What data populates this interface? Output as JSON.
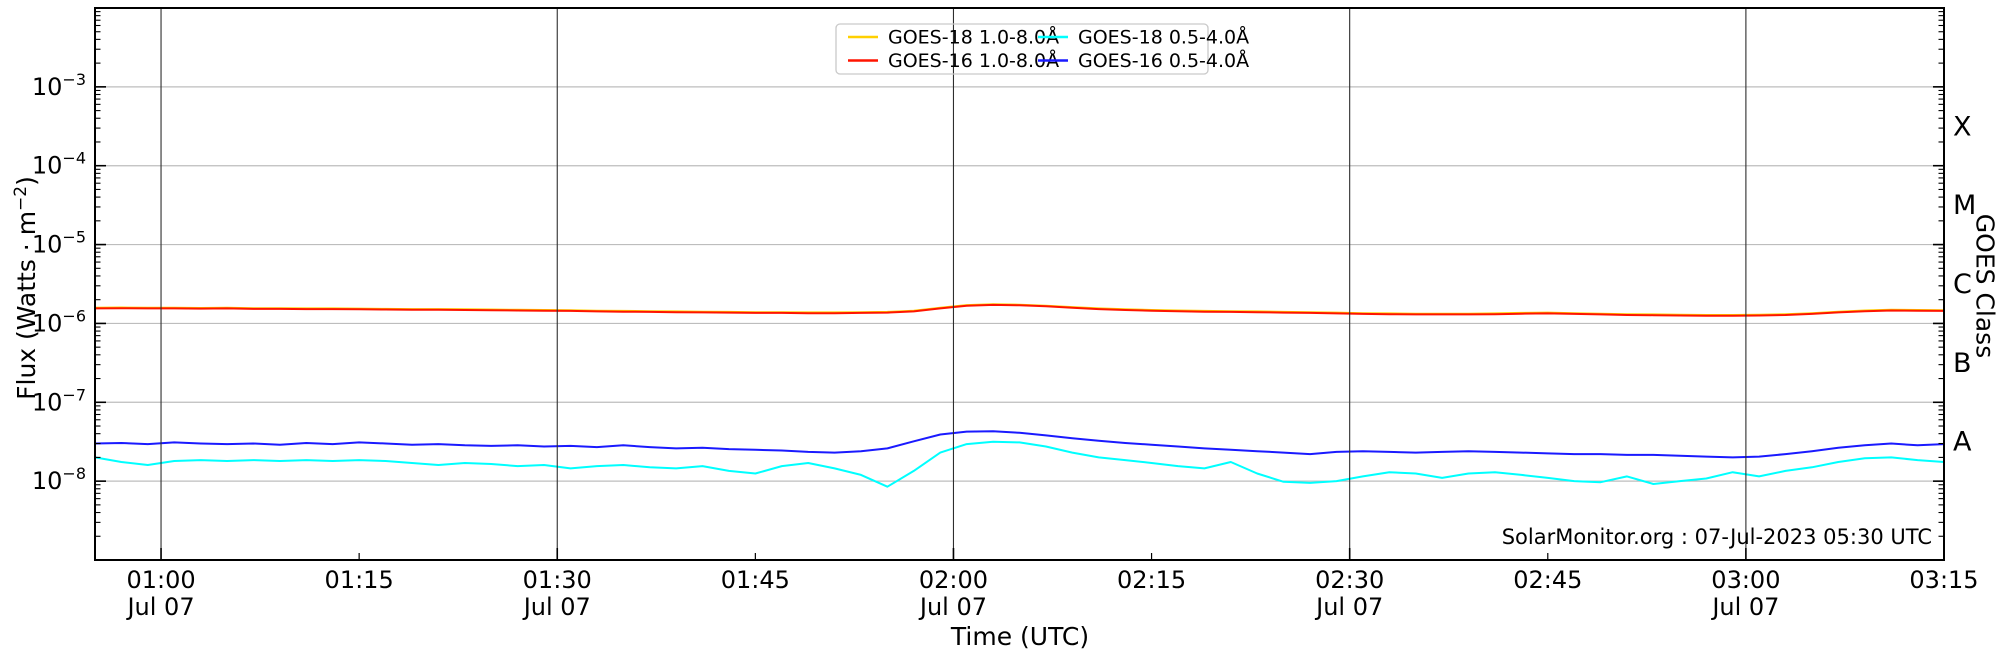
{
  "watermark": "SolarMonitor.org : 07-Jul-2023 05:30 UTC",
  "chart_data": {
    "type": "line",
    "title": "",
    "xlabel": "Time (UTC)",
    "ylabel": {
      "prefix": "Flux (Watts · m",
      "sup": "−2",
      "suffix": ")"
    },
    "ylabel_right": "GOES Class",
    "ylim": [
      1e-09,
      0.01
    ],
    "x_range_utc": [
      "00:55",
      "03:15"
    ],
    "x_date_label": "Jul 07",
    "grid": {
      "h_color": "#bdbdbd",
      "v_color": "#2e2e2e"
    },
    "axis_color": "#000000",
    "legend_border_color": "#c9c9c9",
    "y_tick_exponents": [
      -3,
      -4,
      -5,
      -6,
      -7,
      -8
    ],
    "x_ticks": [
      {
        "min": 60,
        "label": "01:00",
        "sub": "Jul 07"
      },
      {
        "min": 75,
        "label": "01:15",
        "sub": ""
      },
      {
        "min": 90,
        "label": "01:30",
        "sub": "Jul 07"
      },
      {
        "min": 105,
        "label": "01:45",
        "sub": ""
      },
      {
        "min": 120,
        "label": "02:00",
        "sub": "Jul 07"
      },
      {
        "min": 135,
        "label": "02:15",
        "sub": ""
      },
      {
        "min": 150,
        "label": "02:30",
        "sub": "Jul 07"
      },
      {
        "min": 165,
        "label": "02:45",
        "sub": ""
      },
      {
        "min": 180,
        "label": "03:00",
        "sub": "Jul 07"
      },
      {
        "min": 195,
        "label": "03:15",
        "sub": ""
      }
    ],
    "x_gridlines_min": [
      60,
      90,
      120,
      150,
      180
    ],
    "goes_classes": [
      {
        "label": "X",
        "center_exp": -3.5
      },
      {
        "label": "M",
        "center_exp": -4.5
      },
      {
        "label": "C",
        "center_exp": -5.5
      },
      {
        "label": "B",
        "center_exp": -6.5
      },
      {
        "label": "A",
        "center_exp": -7.5
      }
    ],
    "legend": {
      "entries": [
        {
          "label": "GOES-18 1.0-8.0Å",
          "color": "#ffd000"
        },
        {
          "label": "GOES-16 1.0-8.0Å",
          "color": "#ff1400"
        },
        {
          "label": "GOES-18 0.5-4.0Å",
          "color": "#00ffff"
        },
        {
          "label": "GOES-16 0.5-4.0Å",
          "color": "#1a1aff"
        }
      ]
    },
    "x_minutes": [
      55,
      57,
      59,
      61,
      63,
      65,
      67,
      69,
      71,
      73,
      75,
      77,
      79,
      81,
      83,
      85,
      87,
      89,
      91,
      93,
      95,
      97,
      99,
      101,
      103,
      105,
      107,
      109,
      111,
      113,
      115,
      117,
      119,
      121,
      123,
      125,
      127,
      129,
      131,
      133,
      135,
      137,
      139,
      141,
      143,
      145,
      147,
      149,
      151,
      153,
      155,
      157,
      159,
      161,
      163,
      165,
      167,
      169,
      171,
      173,
      175,
      177,
      179,
      181,
      183,
      185,
      187,
      189,
      191,
      193,
      195
    ],
    "series": [
      {
        "name": "GOES-18 1.0-8.0Å",
        "color": "#ffd000",
        "flux": [
          1.58e-06,
          1.59e-06,
          1.58e-06,
          1.58e-06,
          1.57e-06,
          1.58e-06,
          1.56e-06,
          1.56e-06,
          1.55e-06,
          1.55e-06,
          1.54e-06,
          1.53e-06,
          1.52e-06,
          1.52e-06,
          1.51e-06,
          1.5e-06,
          1.49e-06,
          1.48e-06,
          1.47e-06,
          1.45e-06,
          1.44e-06,
          1.43e-06,
          1.42e-06,
          1.41e-06,
          1.4e-06,
          1.39e-06,
          1.39e-06,
          1.38e-06,
          1.38e-06,
          1.39e-06,
          1.4e-06,
          1.45e-06,
          1.58e-06,
          1.71e-06,
          1.75e-06,
          1.73e-06,
          1.68e-06,
          1.61e-06,
          1.55e-06,
          1.51e-06,
          1.48e-06,
          1.46e-06,
          1.44e-06,
          1.43e-06,
          1.42e-06,
          1.4e-06,
          1.39e-06,
          1.37e-06,
          1.35e-06,
          1.34e-06,
          1.33e-06,
          1.33e-06,
          1.33e-06,
          1.34e-06,
          1.36e-06,
          1.37e-06,
          1.35e-06,
          1.33e-06,
          1.31e-06,
          1.3e-06,
          1.29e-06,
          1.28e-06,
          1.28e-06,
          1.29e-06,
          1.31e-06,
          1.35e-06,
          1.41e-06,
          1.46e-06,
          1.49e-06,
          1.48e-06,
          1.47e-06
        ]
      },
      {
        "name": "GOES-16 1.0-8.0Å",
        "color": "#ff1400",
        "flux": [
          1.55e-06,
          1.56e-06,
          1.55e-06,
          1.55e-06,
          1.54e-06,
          1.55e-06,
          1.53e-06,
          1.53e-06,
          1.52e-06,
          1.52e-06,
          1.51e-06,
          1.5e-06,
          1.49e-06,
          1.49e-06,
          1.48e-06,
          1.47e-06,
          1.46e-06,
          1.45e-06,
          1.44e-06,
          1.42e-06,
          1.41e-06,
          1.4e-06,
          1.39e-06,
          1.38e-06,
          1.37e-06,
          1.36e-06,
          1.36e-06,
          1.35e-06,
          1.35e-06,
          1.36e-06,
          1.37e-06,
          1.42e-06,
          1.55e-06,
          1.68e-06,
          1.72e-06,
          1.7e-06,
          1.65e-06,
          1.58e-06,
          1.52e-06,
          1.48e-06,
          1.45e-06,
          1.43e-06,
          1.41e-06,
          1.4e-06,
          1.39e-06,
          1.37e-06,
          1.36e-06,
          1.34e-06,
          1.32e-06,
          1.31e-06,
          1.3e-06,
          1.3e-06,
          1.3e-06,
          1.31e-06,
          1.33e-06,
          1.34e-06,
          1.32e-06,
          1.3e-06,
          1.28e-06,
          1.27e-06,
          1.26e-06,
          1.25e-06,
          1.25e-06,
          1.26e-06,
          1.28e-06,
          1.32e-06,
          1.38e-06,
          1.43e-06,
          1.46e-06,
          1.45e-06,
          1.44e-06
        ]
      },
      {
        "name": "GOES-18 0.5-4.0Å",
        "color": "#00ffff",
        "flux": [
          2e-08,
          1.75e-08,
          1.6e-08,
          1.8e-08,
          1.85e-08,
          1.8e-08,
          1.85e-08,
          1.8e-08,
          1.85e-08,
          1.8e-08,
          1.85e-08,
          1.8e-08,
          1.7e-08,
          1.6e-08,
          1.7e-08,
          1.65e-08,
          1.55e-08,
          1.6e-08,
          1.45e-08,
          1.55e-08,
          1.6e-08,
          1.5e-08,
          1.45e-08,
          1.55e-08,
          1.35e-08,
          1.25e-08,
          1.55e-08,
          1.7e-08,
          1.45e-08,
          1.2e-08,
          8.5e-09,
          1.35e-08,
          2.3e-08,
          2.95e-08,
          3.15e-08,
          3.1e-08,
          2.75e-08,
          2.3e-08,
          2e-08,
          1.85e-08,
          1.7e-08,
          1.55e-08,
          1.45e-08,
          1.75e-08,
          1.25e-08,
          9.8e-09,
          9.5e-09,
          1e-08,
          1.15e-08,
          1.3e-08,
          1.25e-08,
          1.1e-08,
          1.25e-08,
          1.3e-08,
          1.2e-08,
          1.1e-08,
          1e-08,
          9.7e-09,
          1.15e-08,
          9.2e-09,
          1e-08,
          1.08e-08,
          1.3e-08,
          1.15e-08,
          1.35e-08,
          1.5e-08,
          1.75e-08,
          1.95e-08,
          2e-08,
          1.85e-08,
          1.75e-08
        ]
      },
      {
        "name": "GOES-16 0.5-4.0Å",
        "color": "#1a1aff",
        "flux": [
          3e-08,
          3.05e-08,
          2.95e-08,
          3.1e-08,
          3e-08,
          2.95e-08,
          3e-08,
          2.9e-08,
          3.05e-08,
          2.95e-08,
          3.1e-08,
          3e-08,
          2.9e-08,
          2.95e-08,
          2.85e-08,
          2.8e-08,
          2.85e-08,
          2.75e-08,
          2.8e-08,
          2.7e-08,
          2.85e-08,
          2.7e-08,
          2.6e-08,
          2.65e-08,
          2.55e-08,
          2.5e-08,
          2.45e-08,
          2.35e-08,
          2.3e-08,
          2.4e-08,
          2.6e-08,
          3.2e-08,
          3.9e-08,
          4.25e-08,
          4.3e-08,
          4.1e-08,
          3.8e-08,
          3.5e-08,
          3.25e-08,
          3.05e-08,
          2.9e-08,
          2.75e-08,
          2.6e-08,
          2.5e-08,
          2.4e-08,
          2.3e-08,
          2.2e-08,
          2.35e-08,
          2.4e-08,
          2.35e-08,
          2.3e-08,
          2.35e-08,
          2.4e-08,
          2.35e-08,
          2.3e-08,
          2.25e-08,
          2.2e-08,
          2.2e-08,
          2.15e-08,
          2.15e-08,
          2.1e-08,
          2.05e-08,
          2e-08,
          2.05e-08,
          2.2e-08,
          2.4e-08,
          2.65e-08,
          2.85e-08,
          3e-08,
          2.85e-08,
          2.95e-08
        ]
      }
    ]
  }
}
